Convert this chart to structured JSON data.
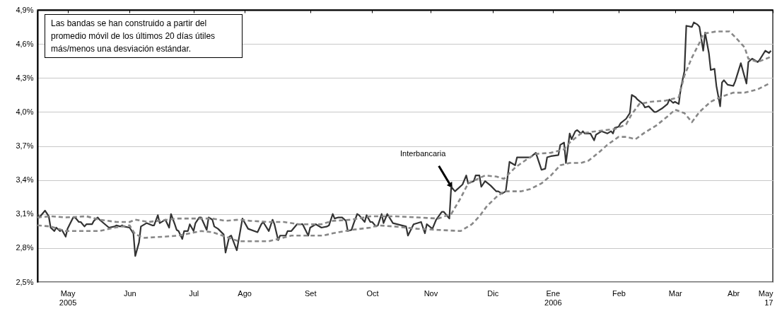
{
  "chart_data": {
    "type": "line",
    "xlim": [
      "2005-04-21",
      "2006-05-17"
    ],
    "xticks": [
      {
        "value": "2005-05-07",
        "label": "May\n2005"
      },
      {
        "value": "2005-06-09",
        "label": "Jun"
      },
      {
        "value": "2005-07-13",
        "label": "Jul"
      },
      {
        "value": "2005-08-09",
        "label": "Ago"
      },
      {
        "value": "2005-09-13",
        "label": "Set"
      },
      {
        "value": "2005-10-16",
        "label": "Oct"
      },
      {
        "value": "2005-11-16",
        "label": "Nov"
      },
      {
        "value": "2005-12-19",
        "label": "Dic"
      },
      {
        "value": "2006-01-20",
        "label": "Ene\n2006"
      },
      {
        "value": "2006-02-24",
        "label": "Feb"
      },
      {
        "value": "2006-03-26",
        "label": "Mar"
      },
      {
        "value": "2006-04-26",
        "label": "Abr"
      },
      {
        "value": "2006-05-17",
        "label": "May\n17"
      }
    ],
    "ylim": [
      2.5,
      4.9
    ],
    "yticks": [
      {
        "value": 2.5,
        "label": "2,5%"
      },
      {
        "value": 2.8,
        "label": "2,8%"
      },
      {
        "value": 3.1,
        "label": "3,1%"
      },
      {
        "value": 3.4,
        "label": "3,4%"
      },
      {
        "value": 3.7,
        "label": "3,7%"
      },
      {
        "value": 4.0,
        "label": "4,0%"
      },
      {
        "value": 4.3,
        "label": "4,3%"
      },
      {
        "value": 4.6,
        "label": "4,6%"
      },
      {
        "value": 4.9,
        "label": "4,9%"
      }
    ],
    "grid": "y",
    "series": [
      {
        "color": "#333333",
        "line_style": "solid",
        "x": [
          "2005-04-21",
          "2005-04-22",
          "2005-04-25",
          "2005-04-27",
          "2005-04-28",
          "2005-04-30",
          "2005-05-01",
          "2005-05-03",
          "2005-05-04",
          "2005-05-06",
          "2005-05-07",
          "2005-05-10",
          "2005-05-11",
          "2005-05-13",
          "2005-05-14",
          "2005-05-16",
          "2005-05-17",
          "2005-05-20",
          "2005-05-21",
          "2005-05-23",
          "2005-05-24",
          "2005-05-29",
          "2005-06-01",
          "2005-06-02",
          "2005-06-04",
          "2005-06-05",
          "2005-06-06",
          "2005-06-09",
          "2005-06-11",
          "2005-06-12",
          "2005-06-14",
          "2005-06-15",
          "2005-06-18",
          "2005-06-21",
          "2005-06-22",
          "2005-06-24",
          "2005-06-25",
          "2005-06-27",
          "2005-06-28",
          "2005-06-30",
          "2005-07-01",
          "2005-07-03",
          "2005-07-04",
          "2005-07-05",
          "2005-07-07",
          "2005-07-08",
          "2005-07-10",
          "2005-07-11",
          "2005-07-13",
          "2005-07-14",
          "2005-07-16",
          "2005-07-17",
          "2005-07-20",
          "2005-07-21",
          "2005-07-23",
          "2005-07-24",
          "2005-07-26",
          "2005-07-29",
          "2005-07-30",
          "2005-08-01",
          "2005-08-02",
          "2005-08-05",
          "2005-08-08",
          "2005-08-11",
          "2005-08-16",
          "2005-08-18",
          "2005-08-19",
          "2005-08-22",
          "2005-08-24",
          "2005-08-25",
          "2005-08-27",
          "2005-08-28",
          "2005-08-31",
          "2005-09-01",
          "2005-09-03",
          "2005-09-06",
          "2005-09-09",
          "2005-09-12",
          "2005-09-13",
          "2005-09-16",
          "2005-09-19",
          "2005-09-22",
          "2005-09-23",
          "2005-09-25",
          "2005-09-26",
          "2005-09-28",
          "2005-09-30",
          "2005-10-02",
          "2005-10-03",
          "2005-10-05",
          "2005-10-06",
          "2005-10-08",
          "2005-10-09",
          "2005-10-12",
          "2005-10-13",
          "2005-10-15",
          "2005-10-16",
          "2005-10-18",
          "2005-10-19",
          "2005-10-21",
          "2005-10-22",
          "2005-10-24",
          "2005-10-27",
          "2005-11-03",
          "2005-11-04",
          "2005-11-07",
          "2005-11-11",
          "2005-11-13",
          "2005-11-14",
          "2005-11-17",
          "2005-11-19",
          "2005-11-22",
          "2005-11-23",
          "2005-11-26",
          "2005-11-27",
          "2005-11-29",
          "2005-12-03",
          "2005-12-05",
          "2005-12-06",
          "2005-12-09",
          "2005-12-10",
          "2005-12-12",
          "2005-12-13",
          "2005-12-15",
          "2005-12-18",
          "2005-12-21",
          "2005-12-22",
          "2005-12-24",
          "2005-12-26",
          "2005-12-28",
          "2005-12-31",
          "2006-01-01",
          "2006-01-04",
          "2006-01-07",
          "2006-01-08",
          "2006-01-11",
          "2006-01-14",
          "2006-01-16",
          "2006-01-17",
          "2006-01-19",
          "2006-01-23",
          "2006-01-24",
          "2006-01-26",
          "2006-01-27",
          "2006-01-29",
          "2006-01-30",
          "2006-02-01",
          "2006-02-02",
          "2006-02-04",
          "2006-02-05",
          "2006-02-06",
          "2006-02-09",
          "2006-02-11",
          "2006-02-12",
          "2006-02-15",
          "2006-02-18",
          "2006-02-20",
          "2006-02-21",
          "2006-02-22",
          "2006-02-24",
          "2006-02-25",
          "2006-02-28",
          "2006-03-02",
          "2006-03-03",
          "2006-03-05",
          "2006-03-06",
          "2006-03-09",
          "2006-03-10",
          "2006-03-12",
          "2006-03-15",
          "2006-03-16",
          "2006-03-19",
          "2006-03-22",
          "2006-03-23",
          "2006-03-25",
          "2006-03-26",
          "2006-03-28",
          "2006-03-29",
          "2006-03-31",
          "2006-04-01",
          "2006-04-04",
          "2006-04-05",
          "2006-04-07",
          "2006-04-08",
          "2006-04-10",
          "2006-04-11",
          "2006-04-13",
          "2006-04-14",
          "2006-04-16",
          "2006-04-17",
          "2006-04-19",
          "2006-04-20",
          "2006-04-21",
          "2006-04-23",
          "2006-04-26",
          "2006-04-27",
          "2006-04-30",
          "2006-05-03",
          "2006-05-04",
          "2006-05-06",
          "2006-05-09",
          "2006-05-10",
          "2006-05-13",
          "2006-05-15",
          "2006-05-16"
        ],
        "values": [
          3.1,
          3.07,
          3.13,
          3.08,
          2.98,
          2.95,
          2.98,
          2.95,
          2.96,
          2.9,
          2.97,
          3.07,
          3.07,
          3.03,
          3.03,
          2.99,
          3.01,
          3.01,
          3.04,
          3.07,
          3.05,
          2.98,
          2.99,
          3.0,
          2.99,
          3.0,
          2.99,
          2.98,
          2.93,
          2.73,
          2.85,
          2.99,
          3.02,
          3.0,
          3.0,
          3.09,
          3.02,
          3.04,
          3.05,
          2.98,
          3.1,
          3.01,
          2.96,
          2.95,
          2.88,
          2.95,
          2.95,
          3.01,
          2.95,
          3.02,
          3.07,
          3.07,
          2.96,
          3.07,
          3.05,
          2.99,
          2.97,
          2.92,
          2.76,
          2.9,
          2.91,
          2.78,
          3.06,
          2.97,
          2.94,
          3.01,
          3.03,
          2.95,
          3.05,
          3.01,
          2.87,
          2.91,
          2.91,
          2.95,
          2.95,
          3.01,
          3.01,
          2.91,
          2.98,
          3.01,
          2.98,
          2.99,
          3.0,
          3.1,
          3.06,
          3.07,
          3.07,
          3.04,
          2.95,
          2.96,
          3.01,
          3.1,
          3.09,
          3.03,
          3.09,
          3.03,
          3.03,
          2.99,
          3.0,
          3.1,
          3.02,
          3.1,
          3.02,
          2.99,
          2.91,
          3.01,
          3.03,
          2.93,
          3.01,
          2.97,
          3.05,
          3.12,
          3.12,
          3.06,
          3.34,
          3.3,
          3.36,
          3.44,
          3.37,
          3.39,
          3.44,
          3.44,
          3.34,
          3.39,
          3.35,
          3.3,
          3.3,
          3.28,
          3.3,
          3.56,
          3.53,
          3.6,
          3.6,
          3.6,
          3.6,
          3.64,
          3.49,
          3.5,
          3.6,
          3.61,
          3.62,
          3.71,
          3.73,
          3.55,
          3.81,
          3.76,
          3.83,
          3.84,
          3.81,
          3.83,
          3.81,
          3.81,
          3.75,
          3.8,
          3.83,
          3.81,
          3.83,
          3.81,
          3.86,
          3.87,
          3.9,
          3.94,
          3.99,
          4.15,
          4.13,
          4.11,
          4.07,
          4.04,
          4.05,
          4.0,
          4.0,
          4.03,
          4.07,
          4.11,
          4.08,
          4.09,
          4.07,
          4.2,
          4.36,
          4.76,
          4.75,
          4.79,
          4.77,
          4.75,
          4.54,
          4.7,
          4.52,
          4.37,
          4.38,
          4.23,
          4.05,
          4.26,
          4.28,
          4.24,
          4.23,
          4.27,
          4.43,
          4.25,
          4.44,
          4.47,
          4.44,
          4.46,
          4.54,
          4.52,
          4.54
        ]
      },
      {
        "color": "#888888",
        "line_style": "dashed",
        "x": [
          "2005-04-21",
          "2005-04-28",
          "2005-05-06",
          "2005-05-17",
          "2005-05-24",
          "2005-06-02",
          "2005-06-09",
          "2005-06-12",
          "2005-06-19",
          "2005-07-04",
          "2005-07-17",
          "2005-07-23",
          "2005-07-30",
          "2005-08-06",
          "2005-08-12",
          "2005-08-22",
          "2005-08-30",
          "2005-09-07",
          "2005-09-19",
          "2005-09-25",
          "2005-10-05",
          "2005-10-15",
          "2005-10-28",
          "2005-11-09",
          "2005-11-20",
          "2005-11-27",
          "2005-12-02",
          "2005-12-06",
          "2005-12-15",
          "2005-12-21",
          "2005-12-25",
          "2005-12-31",
          "2006-01-06",
          "2006-01-11",
          "2006-01-19",
          "2006-01-26",
          "2006-01-29",
          "2006-02-04",
          "2006-02-12",
          "2006-02-17",
          "2006-02-22",
          "2006-02-28",
          "2006-03-03",
          "2006-03-07",
          "2006-03-13",
          "2006-03-21",
          "2006-03-28",
          "2006-03-31",
          "2006-04-04",
          "2006-04-08",
          "2006-04-10",
          "2006-04-17",
          "2006-04-24",
          "2006-04-27",
          "2006-05-02",
          "2006-05-04",
          "2006-05-09",
          "2006-05-15",
          "2006-05-16"
        ],
        "values": [
          3.07,
          3.08,
          3.07,
          3.08,
          3.05,
          3.03,
          3.03,
          3.05,
          3.03,
          3.06,
          3.06,
          3.06,
          3.04,
          3.05,
          3.04,
          3.03,
          3.03,
          3.01,
          3.01,
          3.04,
          3.05,
          3.08,
          3.08,
          3.07,
          3.06,
          3.1,
          3.24,
          3.37,
          3.44,
          3.43,
          3.41,
          3.51,
          3.58,
          3.63,
          3.64,
          3.67,
          3.73,
          3.81,
          3.83,
          3.84,
          3.85,
          3.89,
          3.98,
          4.07,
          4.09,
          4.1,
          4.13,
          4.32,
          4.48,
          4.61,
          4.69,
          4.71,
          4.71,
          4.66,
          4.57,
          4.47,
          4.44,
          4.48,
          4.49
        ]
      },
      {
        "color": "#888888",
        "line_style": "dashed",
        "x": [
          "2005-04-21",
          "2005-04-28",
          "2005-05-06",
          "2005-05-17",
          "2005-05-24",
          "2005-06-01",
          "2005-06-09",
          "2005-06-12",
          "2005-06-17",
          "2005-06-27",
          "2005-07-05",
          "2005-07-17",
          "2005-07-23",
          "2005-07-30",
          "2005-08-06",
          "2005-08-12",
          "2005-08-22",
          "2005-08-27",
          "2005-09-03",
          "2005-09-20",
          "2005-09-25",
          "2005-10-05",
          "2005-10-15",
          "2005-10-19",
          "2005-10-28",
          "2005-11-09",
          "2005-11-20",
          "2005-12-02",
          "2005-12-08",
          "2005-12-12",
          "2005-12-16",
          "2005-12-21",
          "2005-12-25",
          "2006-01-03",
          "2006-01-08",
          "2006-01-14",
          "2006-01-19",
          "2006-01-24",
          "2006-01-29",
          "2006-02-04",
          "2006-02-08",
          "2006-02-14",
          "2006-02-18",
          "2006-02-24",
          "2006-02-28",
          "2006-03-05",
          "2006-03-10",
          "2006-03-16",
          "2006-03-22",
          "2006-03-26",
          "2006-03-31",
          "2006-04-04",
          "2006-04-08",
          "2006-04-14",
          "2006-04-19",
          "2006-04-26",
          "2006-05-02",
          "2006-05-09",
          "2006-05-15"
        ],
        "values": [
          3.0,
          2.99,
          2.95,
          2.95,
          2.95,
          2.98,
          3.0,
          2.92,
          2.89,
          2.9,
          2.91,
          2.95,
          2.94,
          2.9,
          2.86,
          2.86,
          2.86,
          2.88,
          2.91,
          2.91,
          2.93,
          2.96,
          2.98,
          3.0,
          2.99,
          2.97,
          2.96,
          2.95,
          3.01,
          3.08,
          3.17,
          3.25,
          3.3,
          3.3,
          3.32,
          3.37,
          3.44,
          3.53,
          3.55,
          3.55,
          3.57,
          3.65,
          3.71,
          3.78,
          3.78,
          3.76,
          3.82,
          3.88,
          3.96,
          4.02,
          3.99,
          3.91,
          4.0,
          4.09,
          4.13,
          4.17,
          4.17,
          4.2,
          4.25
        ]
      }
    ],
    "annotations": [
      "Las bandas se han construido a partir del promedio móvil de los últimos 20 días útiles más/menos una desviación estándar.",
      {
        "text": "Interbancaria",
        "x": "2005-11-27",
        "y": 3.34
      }
    ]
  }
}
